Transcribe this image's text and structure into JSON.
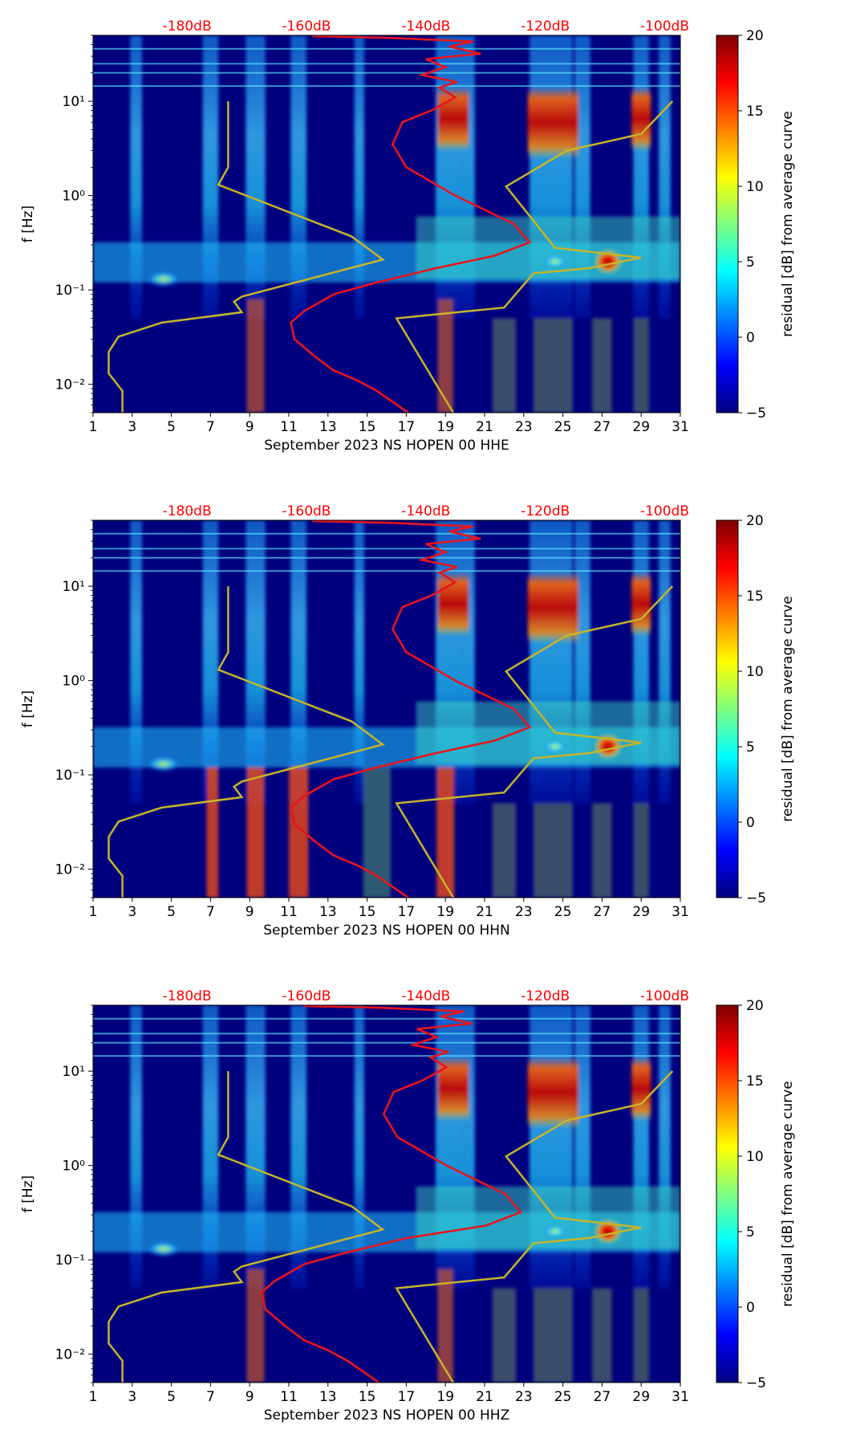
{
  "colorbar": {
    "label": "residual [dB] from average curve",
    "min": -5,
    "max": 20,
    "ticks": [
      "20",
      "15",
      "10",
      "5",
      "0",
      "−5"
    ],
    "colormap": [
      "#00007f",
      "#0000ff",
      "#007fff",
      "#00ffff",
      "#7fff7f",
      "#ffff00",
      "#ff7f00",
      "#ff0000",
      "#7f0000"
    ]
  },
  "colors": {
    "db_labels": "#ff0000",
    "median_curve": "#e8141c",
    "noise_model_curve": "#c8b428",
    "background": "#00007f"
  },
  "chart_data": [
    {
      "type": "heatmap",
      "channel": "HHE",
      "xlabel": "September 2023 NS HOPEN 00 HHE",
      "ylabel": "f [Hz]",
      "xlim": [
        1,
        31
      ],
      "ylim_hz": [
        0.005,
        50
      ],
      "yscale": "log",
      "x_ticks": [
        "1",
        "3",
        "5",
        "7",
        "9",
        "11",
        "13",
        "15",
        "17",
        "19",
        "21",
        "23",
        "25",
        "27",
        "29",
        "31"
      ],
      "y_ticks": [
        "10¹",
        "10⁰",
        "10⁻¹",
        "10⁻²"
      ],
      "top_db_labels": [
        "-180dB",
        "-160dB",
        "-140dB",
        "-120dB",
        "-100dB"
      ],
      "red_curve_x_offset_days": 0,
      "red_curve_hf_region": "spiky"
    },
    {
      "type": "heatmap",
      "channel": "HHN",
      "xlabel": "September 2023 NS HOPEN 00 HHN",
      "ylabel": "f [Hz]",
      "xlim": [
        1,
        31
      ],
      "ylim_hz": [
        0.005,
        50
      ],
      "yscale": "log",
      "x_ticks": [
        "1",
        "3",
        "5",
        "7",
        "9",
        "11",
        "13",
        "15",
        "17",
        "19",
        "21",
        "23",
        "25",
        "27",
        "29",
        "31"
      ],
      "y_ticks": [
        "10¹",
        "10⁰",
        "10⁻¹",
        "10⁻²"
      ],
      "top_db_labels": [
        "-180dB",
        "-160dB",
        "-140dB",
        "-120dB",
        "-100dB"
      ],
      "red_curve_x_offset_days": 0,
      "red_curve_hf_region": "spiky"
    },
    {
      "type": "heatmap",
      "channel": "HHZ",
      "xlabel": "September 2023 NS HOPEN 00 HHZ",
      "ylabel": "f [Hz]",
      "xlim": [
        1,
        31
      ],
      "ylim_hz": [
        0.005,
        50
      ],
      "yscale": "log",
      "x_ticks": [
        "1",
        "3",
        "5",
        "7",
        "9",
        "11",
        "13",
        "15",
        "17",
        "19",
        "21",
        "23",
        "25",
        "27",
        "29",
        "31"
      ],
      "y_ticks": [
        "10¹",
        "10⁰",
        "10⁻¹",
        "10⁻²"
      ],
      "top_db_labels": [
        "-180dB",
        "-160dB",
        "-140dB",
        "-120dB",
        "-100dB"
      ],
      "red_curve_x_offset_days": 1.5,
      "red_curve_hf_region": "spiky"
    }
  ],
  "noise_model_curve": {
    "description_points_day_hz": [
      [
        2.5,
        0.005
      ],
      [
        2.5,
        0.0085
      ],
      [
        1.8,
        0.013
      ],
      [
        1.8,
        0.022
      ],
      [
        2.3,
        0.032
      ],
      [
        4.5,
        0.045
      ],
      [
        8.6,
        0.058
      ],
      [
        8.2,
        0.075
      ],
      [
        8.6,
        0.085
      ],
      [
        15.8,
        0.21
      ],
      [
        14.2,
        0.37
      ],
      [
        7.4,
        1.3
      ],
      [
        7.9,
        2.0
      ],
      [
        7.9,
        10
      ]
    ],
    "secondary_points_day_hz": [
      [
        19.4,
        0.005
      ],
      [
        16.5,
        0.05
      ],
      [
        22.0,
        0.065
      ],
      [
        23.5,
        0.15
      ],
      [
        26.3,
        0.17
      ],
      [
        29.0,
        0.22
      ],
      [
        24.6,
        0.28
      ],
      [
        22.1,
        1.25
      ],
      [
        25.2,
        3.0
      ],
      [
        29.0,
        4.5
      ],
      [
        30.6,
        10
      ]
    ]
  },
  "median_curve_points_day_hz": [
    [
      17.1,
      0.005
    ],
    [
      15.5,
      0.0085
    ],
    [
      14.5,
      0.011
    ],
    [
      13.3,
      0.014
    ],
    [
      12.3,
      0.02
    ],
    [
      11.3,
      0.03
    ],
    [
      11.1,
      0.045
    ],
    [
      11.8,
      0.06
    ],
    [
      13.3,
      0.09
    ],
    [
      15.5,
      0.12
    ],
    [
      18.5,
      0.17
    ],
    [
      21.5,
      0.23
    ],
    [
      23.3,
      0.32
    ],
    [
      22.5,
      0.5
    ],
    [
      19.5,
      1.0
    ],
    [
      17.0,
      2.0
    ],
    [
      16.3,
      3.5
    ],
    [
      16.8,
      6.0
    ],
    [
      18.3,
      8.0
    ],
    [
      19.5,
      11
    ],
    [
      18.7,
      14
    ],
    [
      19.6,
      16
    ],
    [
      17.8,
      19
    ],
    [
      19.0,
      23
    ],
    [
      18.0,
      28
    ],
    [
      20.8,
      32
    ],
    [
      19.2,
      38
    ],
    [
      20.4,
      43
    ],
    [
      16.2,
      47
    ],
    [
      12.2,
      49
    ]
  ]
}
